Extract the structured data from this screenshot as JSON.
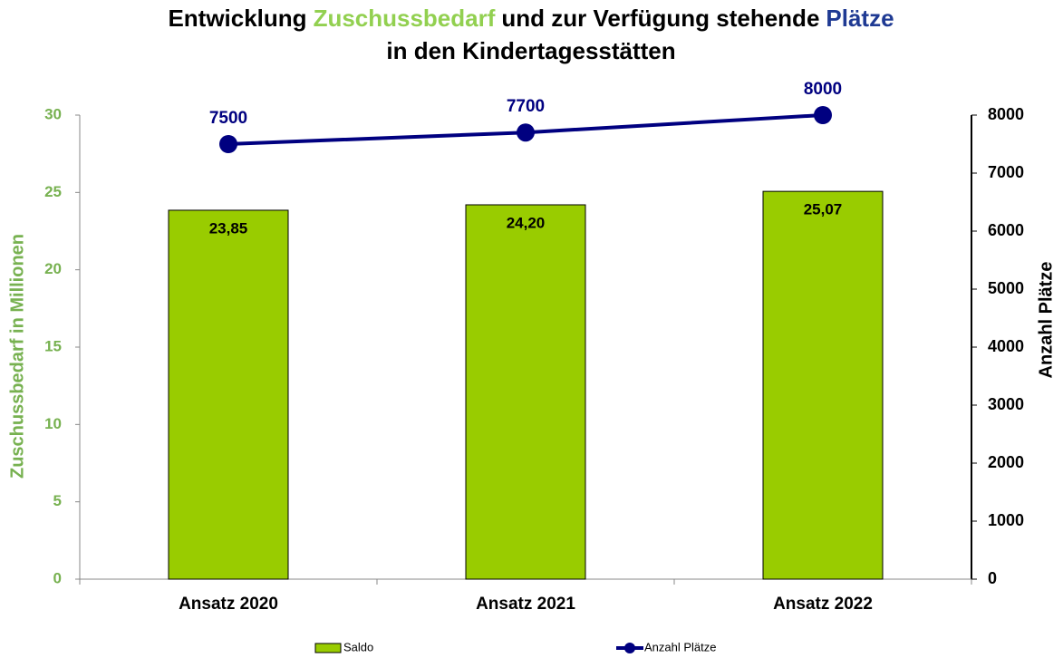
{
  "chart_data": {
    "type": "bar_line",
    "title_lines": [
      [
        {
          "text": "Entwicklung",
          "color": "#000000"
        },
        {
          "text": "Zuschussbedarf",
          "color": "#92d050"
        },
        {
          "text": "und zur Verfügung stehende",
          "color": "#000000"
        },
        {
          "text": "Plätze",
          "color": "#1f3a93"
        }
      ],
      [
        {
          "text": "in den Kindertagesstätten",
          "color": "#000000"
        }
      ]
    ],
    "ylabel": "Zuschussbedarf in Millionen",
    "ylabel_color": "#77b150",
    "y2label": "Anzahl Plätze",
    "categories": [
      "Ansatz 2020",
      "Ansatz 2021",
      "Ansatz 2022"
    ],
    "series": [
      {
        "name": "Saldo",
        "type": "bar",
        "color": "#99cc00",
        "values": [
          23.85,
          24.2,
          25.07
        ],
        "value_labels": [
          "23,85",
          "24,20",
          "25,07"
        ]
      },
      {
        "name": "Anzahl Plätze",
        "type": "line",
        "axis": "y2",
        "color": "#000080",
        "values": [
          7500,
          7700,
          8000
        ]
      }
    ],
    "ylim": [
      0,
      30
    ],
    "yticks": [
      0,
      5,
      10,
      15,
      20,
      25,
      30
    ],
    "y2lim": [
      0,
      8000
    ],
    "y2ticks": [
      0,
      1000,
      2000,
      3000,
      4000,
      5000,
      6000,
      7000,
      8000
    ],
    "grid": false,
    "legend": "bottom"
  }
}
